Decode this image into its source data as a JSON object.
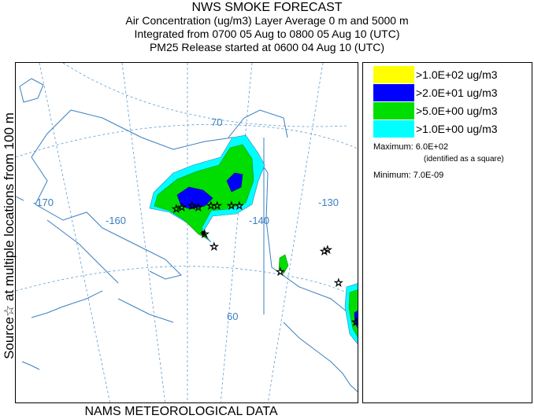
{
  "title": "NWS SMOKE FORECAST",
  "subtitle_lines": [
    "Air Concentration (ug/m3) Layer Average    0 m and  5000 m",
    "Integrated from 0700 05 Aug to 0800 05 Aug 10 (UTC)",
    "PM25 Release started at 0600 04 Aug 10 (UTC)"
  ],
  "side_label": "Source☆ at multiple locations    from  100 m",
  "bottom_label": "NAMS METEOROLOGICAL DATA",
  "map": {
    "lon_labels": [
      "-170",
      "-160",
      "-140",
      "-130"
    ],
    "lat_labels": [
      "70",
      "60"
    ],
    "colors": {
      "land_outline": "#3a7fc0",
      "grid": "#5a9bd0",
      "level_100": "#ffff00",
      "level_20": "#0000ff",
      "level_5": "#00dd00",
      "level_1": "#00ffff"
    }
  },
  "legend": {
    "items": [
      {
        "color": "#ffff00",
        "label": ">1.0E+02 ug/m3"
      },
      {
        "color": "#0000ff",
        "label": ">2.0E+01 ug/m3"
      },
      {
        "color": "#00dd00",
        "label": ">5.0E+00 ug/m3"
      },
      {
        "color": "#00ffff",
        "label": ">1.0E+00 ug/m3"
      }
    ],
    "maximum_label": "Maximum: 6.0E+02",
    "maximum_note": "(identified as a square)",
    "minimum_label": "Minimum: 7.0E-09"
  }
}
